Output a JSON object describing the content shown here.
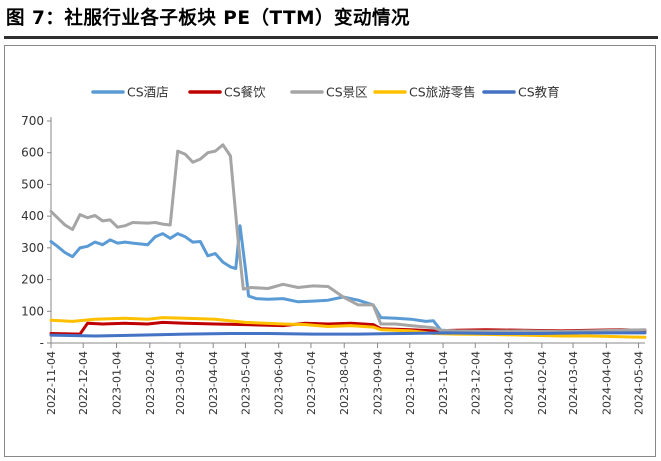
{
  "figure_title": "图 7：社服行业各子板块 PE（TTM）变动情况",
  "chart_data": {
    "type": "line",
    "ylim": [
      0,
      700
    ],
    "yticks": [
      0,
      100,
      200,
      300,
      400,
      500,
      600,
      700
    ],
    "y_tick_labels": [
      "-",
      "100",
      "200",
      "300",
      "400",
      "500",
      "600",
      "700"
    ],
    "x_tick_labels": [
      "2022-11-04",
      "2022-12-04",
      "2023-01-04",
      "2023-02-04",
      "2023-03-04",
      "2023-04-04",
      "2023-05-04",
      "2023-06-04",
      "2023-07-04",
      "2023-08-04",
      "2023-09-04",
      "2023-10-04",
      "2023-11-04",
      "2023-12-04",
      "2024-01-04",
      "2024-02-04",
      "2024-03-04",
      "2024-04-04",
      "2024-05-04"
    ],
    "x_range": [
      "2022-11-04",
      "2024-05-10"
    ],
    "grid": false,
    "legend_position": "top",
    "series": [
      {
        "name": "CS酒店",
        "color": "#5b9bd5",
        "points": [
          [
            "2022-11-04",
            320
          ],
          [
            "2022-11-10",
            305
          ],
          [
            "2022-11-17",
            285
          ],
          [
            "2022-11-24",
            272
          ],
          [
            "2022-12-01",
            300
          ],
          [
            "2022-12-08",
            305
          ],
          [
            "2022-12-15",
            318
          ],
          [
            "2022-12-22",
            310
          ],
          [
            "2022-12-29",
            325
          ],
          [
            "2023-01-05",
            315
          ],
          [
            "2023-01-12",
            318
          ],
          [
            "2023-01-19",
            315
          ],
          [
            "2023-02-02",
            310
          ],
          [
            "2023-02-09",
            335
          ],
          [
            "2023-02-16",
            345
          ],
          [
            "2023-02-23",
            330
          ],
          [
            "2023-03-02",
            345
          ],
          [
            "2023-03-09",
            335
          ],
          [
            "2023-03-16",
            318
          ],
          [
            "2023-03-23",
            320
          ],
          [
            "2023-03-30",
            275
          ],
          [
            "2023-04-06",
            282
          ],
          [
            "2023-04-13",
            255
          ],
          [
            "2023-04-20",
            240
          ],
          [
            "2023-04-25",
            235
          ],
          [
            "2023-04-29",
            370
          ],
          [
            "2023-05-04",
            235
          ],
          [
            "2023-05-07",
            148
          ],
          [
            "2023-05-14",
            140
          ],
          [
            "2023-05-25",
            138
          ],
          [
            "2023-06-08",
            140
          ],
          [
            "2023-06-22",
            130
          ],
          [
            "2023-07-06",
            132
          ],
          [
            "2023-07-20",
            135
          ],
          [
            "2023-08-03",
            145
          ],
          [
            "2023-08-17",
            135
          ],
          [
            "2023-08-31",
            120
          ],
          [
            "2023-09-07",
            80
          ],
          [
            "2023-09-21",
            78
          ],
          [
            "2023-10-05",
            75
          ],
          [
            "2023-10-19",
            68
          ],
          [
            "2023-10-26",
            70
          ],
          [
            "2023-11-02",
            40
          ],
          [
            "2023-11-16",
            38
          ],
          [
            "2023-12-14",
            37
          ],
          [
            "2024-01-18",
            36
          ],
          [
            "2024-02-22",
            35
          ],
          [
            "2024-03-21",
            36
          ],
          [
            "2024-04-18",
            38
          ],
          [
            "2024-05-10",
            38
          ]
        ]
      },
      {
        "name": "CS餐饮",
        "color": "#c00000",
        "points": [
          [
            "2022-11-04",
            30
          ],
          [
            "2022-12-01",
            28
          ],
          [
            "2022-12-08",
            62
          ],
          [
            "2022-12-22",
            60
          ],
          [
            "2023-01-12",
            62
          ],
          [
            "2023-02-02",
            60
          ],
          [
            "2023-02-16",
            65
          ],
          [
            "2023-03-09",
            62
          ],
          [
            "2023-04-06",
            60
          ],
          [
            "2023-05-04",
            58
          ],
          [
            "2023-06-08",
            55
          ],
          [
            "2023-06-29",
            62
          ],
          [
            "2023-07-20",
            60
          ],
          [
            "2023-08-10",
            62
          ],
          [
            "2023-08-31",
            58
          ],
          [
            "2023-09-07",
            45
          ],
          [
            "2023-10-05",
            42
          ],
          [
            "2023-10-26",
            38
          ],
          [
            "2023-11-16",
            40
          ],
          [
            "2023-12-14",
            42
          ],
          [
            "2024-01-18",
            40
          ],
          [
            "2024-02-22",
            38
          ],
          [
            "2024-03-21",
            40
          ],
          [
            "2024-04-18",
            42
          ],
          [
            "2024-05-10",
            40
          ]
        ]
      },
      {
        "name": "CS景区",
        "color": "#a5a5a5",
        "points": [
          [
            "2022-11-04",
            415
          ],
          [
            "2022-11-10",
            395
          ],
          [
            "2022-11-17",
            372
          ],
          [
            "2022-11-24",
            358
          ],
          [
            "2022-12-01",
            405
          ],
          [
            "2022-12-08",
            395
          ],
          [
            "2022-12-15",
            402
          ],
          [
            "2022-12-22",
            385
          ],
          [
            "2022-12-29",
            388
          ],
          [
            "2023-01-05",
            365
          ],
          [
            "2023-01-12",
            370
          ],
          [
            "2023-01-19",
            380
          ],
          [
            "2023-02-02",
            378
          ],
          [
            "2023-02-09",
            380
          ],
          [
            "2023-02-16",
            375
          ],
          [
            "2023-02-23",
            372
          ],
          [
            "2023-03-02",
            605
          ],
          [
            "2023-03-09",
            595
          ],
          [
            "2023-03-16",
            570
          ],
          [
            "2023-03-23",
            580
          ],
          [
            "2023-03-30",
            600
          ],
          [
            "2023-04-06",
            605
          ],
          [
            "2023-04-13",
            625
          ],
          [
            "2023-04-20",
            590
          ],
          [
            "2023-04-27",
            330
          ],
          [
            "2023-05-02",
            170
          ],
          [
            "2023-05-09",
            175
          ],
          [
            "2023-05-25",
            172
          ],
          [
            "2023-06-08",
            185
          ],
          [
            "2023-06-22",
            175
          ],
          [
            "2023-07-06",
            180
          ],
          [
            "2023-07-20",
            178
          ],
          [
            "2023-08-03",
            145
          ],
          [
            "2023-08-17",
            120
          ],
          [
            "2023-08-31",
            120
          ],
          [
            "2023-09-07",
            60
          ],
          [
            "2023-09-21",
            60
          ],
          [
            "2023-10-05",
            55
          ],
          [
            "2023-10-26",
            48
          ],
          [
            "2023-11-02",
            40
          ],
          [
            "2023-11-16",
            38
          ],
          [
            "2023-12-14",
            37
          ],
          [
            "2024-01-18",
            38
          ],
          [
            "2024-02-22",
            36
          ],
          [
            "2024-03-21",
            38
          ],
          [
            "2024-04-18",
            40
          ],
          [
            "2024-05-10",
            42
          ]
        ]
      },
      {
        "name": "CS旅游零售",
        "color": "#ffc000",
        "points": [
          [
            "2022-11-04",
            72
          ],
          [
            "2022-11-24",
            68
          ],
          [
            "2022-12-15",
            75
          ],
          [
            "2023-01-12",
            78
          ],
          [
            "2023-02-02",
            75
          ],
          [
            "2023-02-16",
            80
          ],
          [
            "2023-03-09",
            78
          ],
          [
            "2023-04-06",
            75
          ],
          [
            "2023-05-04",
            65
          ],
          [
            "2023-06-08",
            60
          ],
          [
            "2023-06-29",
            58
          ],
          [
            "2023-07-20",
            52
          ],
          [
            "2023-08-10",
            55
          ],
          [
            "2023-08-31",
            50
          ],
          [
            "2023-09-07",
            42
          ],
          [
            "2023-10-05",
            38
          ],
          [
            "2023-10-26",
            30
          ],
          [
            "2023-11-16",
            28
          ],
          [
            "2023-12-14",
            27
          ],
          [
            "2024-01-18",
            25
          ],
          [
            "2024-02-22",
            22
          ],
          [
            "2024-03-21",
            22
          ],
          [
            "2024-04-18",
            20
          ],
          [
            "2024-05-10",
            18
          ]
        ]
      },
      {
        "name": "CS教育",
        "color": "#4472c4",
        "points": [
          [
            "2022-11-04",
            25
          ],
          [
            "2022-12-15",
            22
          ],
          [
            "2023-01-26",
            25
          ],
          [
            "2023-03-09",
            28
          ],
          [
            "2023-04-20",
            30
          ],
          [
            "2023-05-25",
            30
          ],
          [
            "2023-07-06",
            28
          ],
          [
            "2023-08-17",
            28
          ],
          [
            "2023-09-28",
            30
          ],
          [
            "2023-11-09",
            32
          ],
          [
            "2023-12-21",
            30
          ],
          [
            "2024-02-01",
            30
          ],
          [
            "2024-03-14",
            32
          ],
          [
            "2024-04-25",
            32
          ],
          [
            "2024-05-10",
            32
          ]
        ]
      }
    ]
  }
}
